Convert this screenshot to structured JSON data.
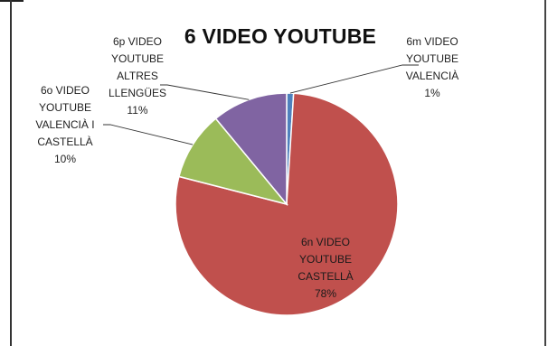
{
  "chart_data": {
    "type": "pie",
    "title": "6  VIDEO YOUTUBE",
    "slices": [
      {
        "label": "6m VIDEO\nYOUTUBE\nVALENCIÀ",
        "percent_label": "1%",
        "value": 1,
        "color": "#4f81bd"
      },
      {
        "label": "6n VIDEO\nYOUTUBE\nCASTELLÀ",
        "percent_label": "78%",
        "value": 78,
        "color": "#c0504d"
      },
      {
        "label": "6o VIDEO\nYOUTUBE\nVALENCIÀ I\nCASTELLÀ",
        "percent_label": "10%",
        "value": 10,
        "color": "#9bbb59"
      },
      {
        "label": "6p VIDEO\nYOUTUBE\nALTRES\nLLENGÜES",
        "percent_label": "11%",
        "value": 11,
        "color": "#8064a2"
      }
    ],
    "legend": "none",
    "data_labels": "outside with leader lines (largest inside)"
  }
}
